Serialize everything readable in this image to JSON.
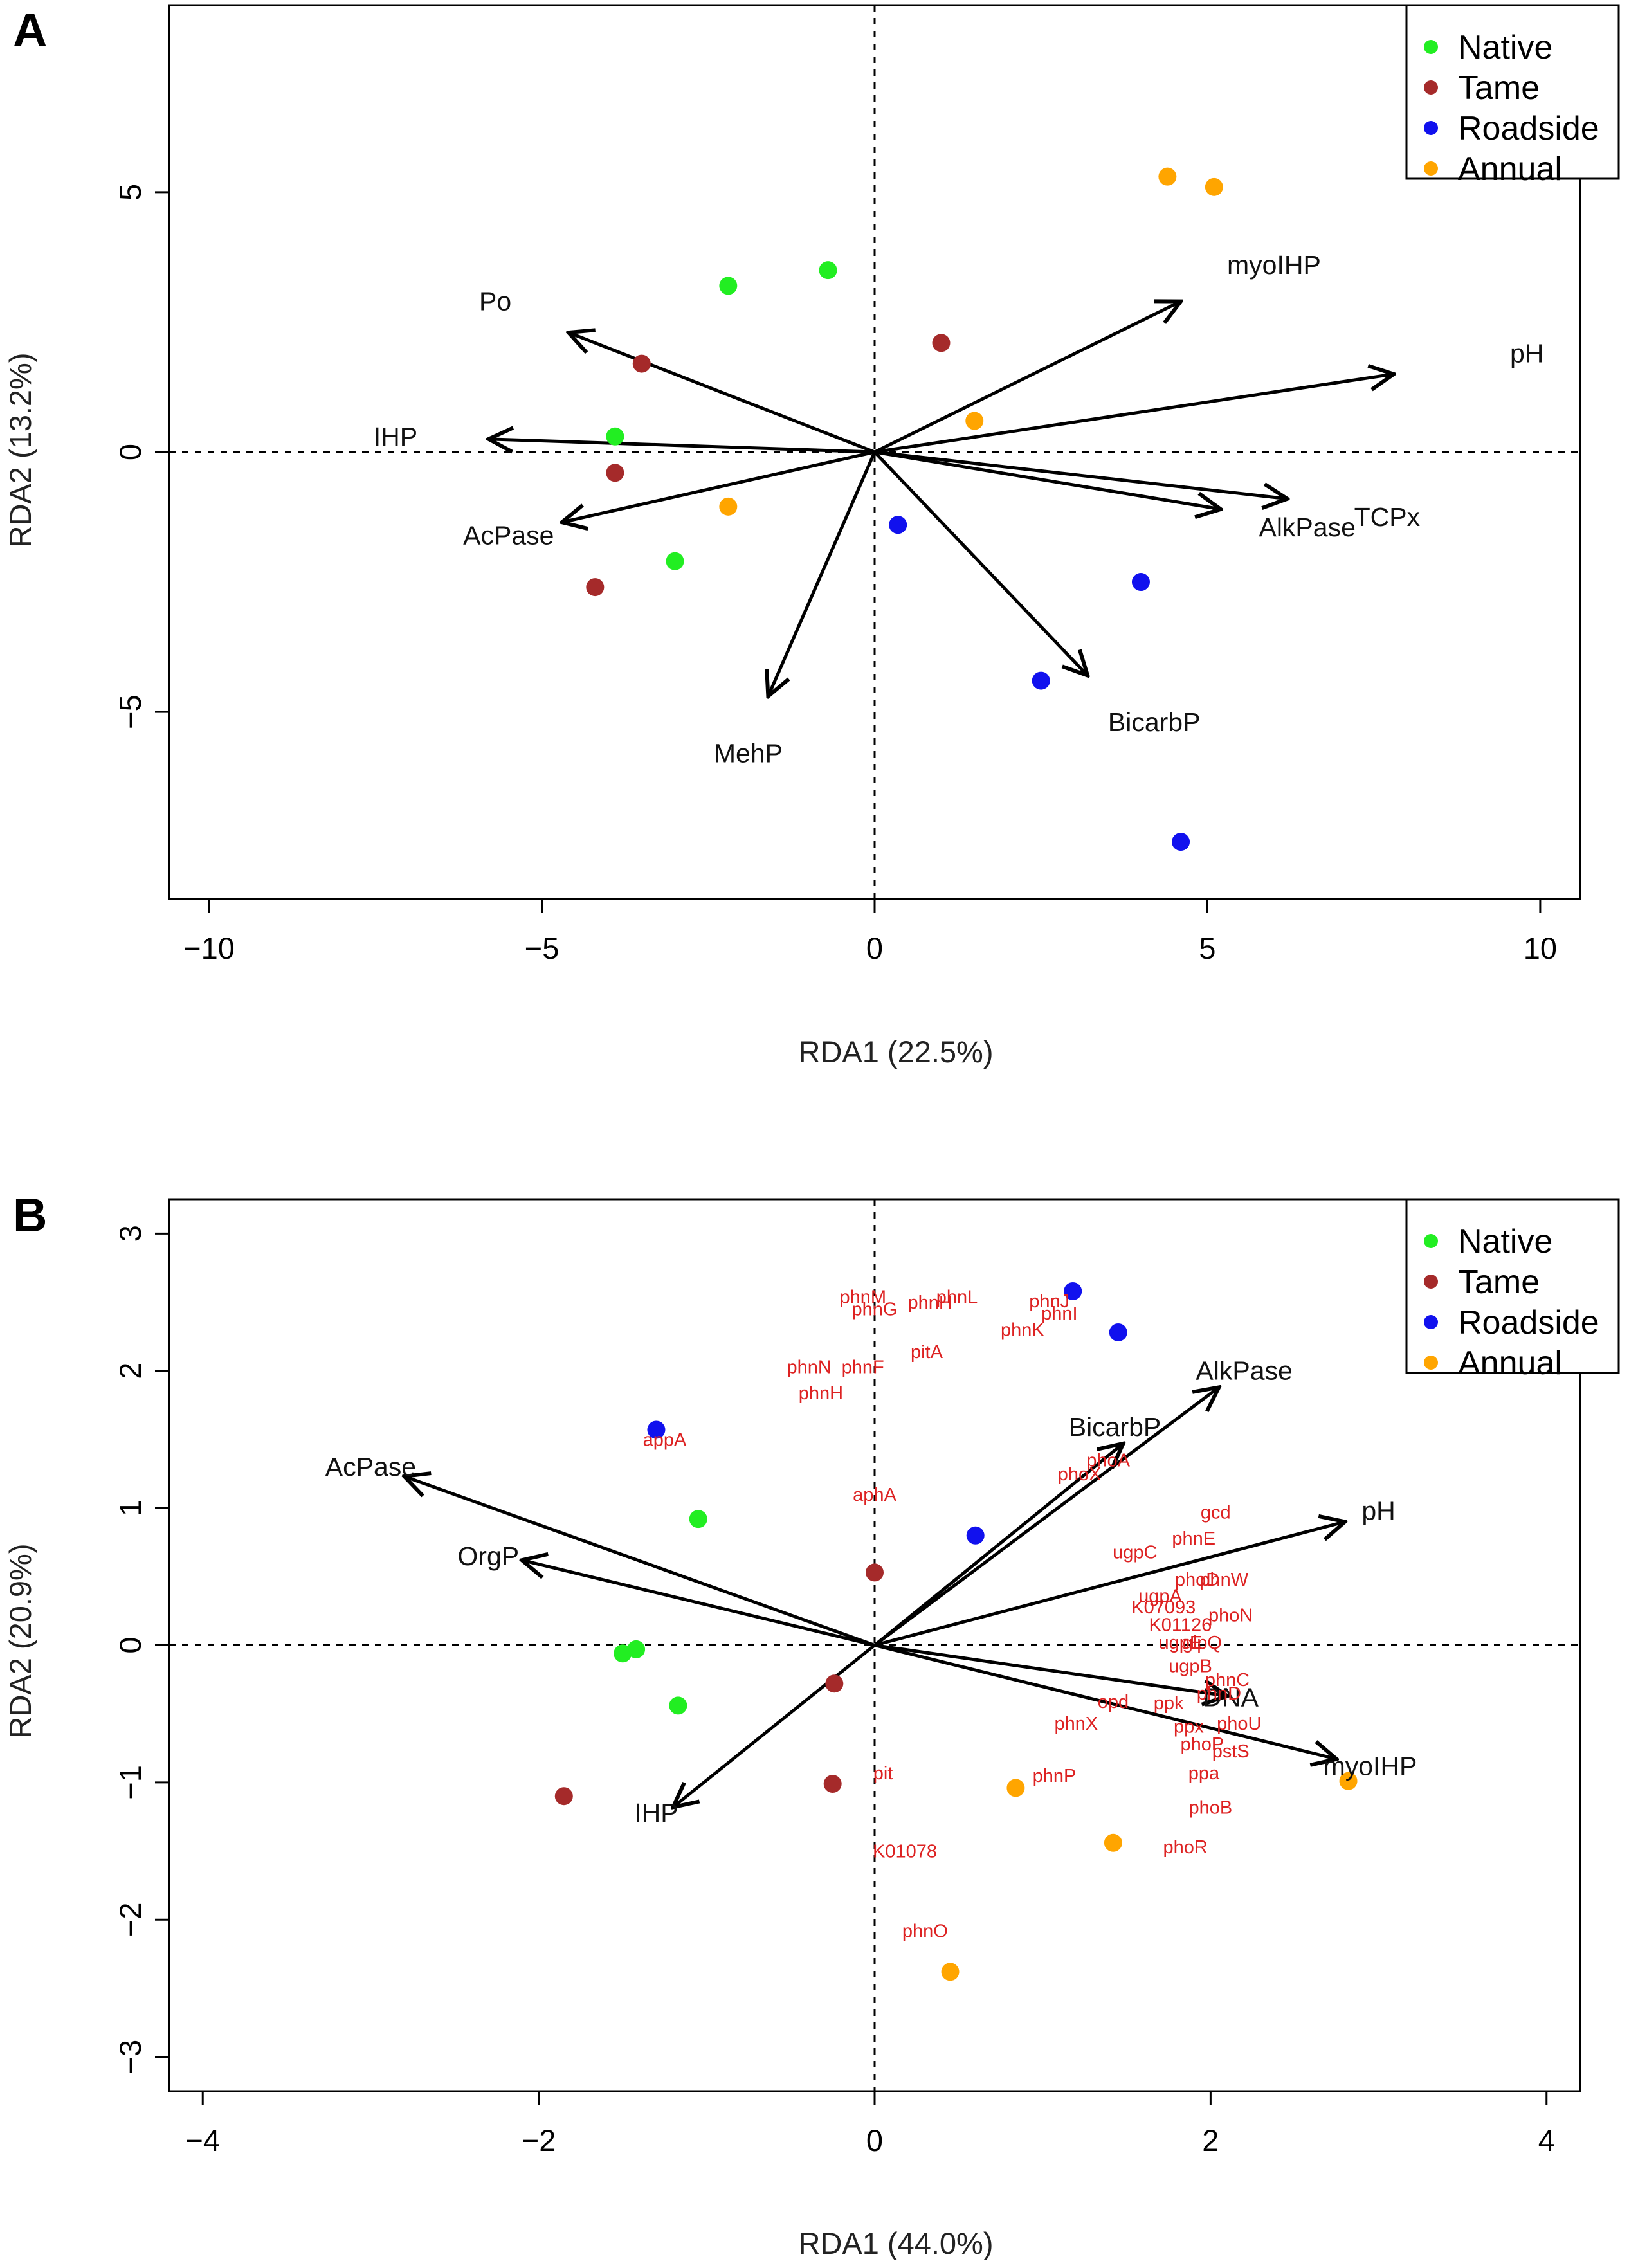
{
  "chart_data": [
    {
      "type": "scatter",
      "panel_label": "A",
      "xlabel": "RDA1 (22.5%)",
      "ylabel": "RDA2 (13.2%)",
      "xlim": [
        -10.6,
        10.6
      ],
      "ylim": [
        -8.6,
        8.6
      ],
      "xticks": [
        -10,
        -5,
        0,
        5,
        10
      ],
      "yticks": [
        -5,
        0,
        5
      ],
      "legend": {
        "position": "top-right",
        "entries": [
          {
            "label": "Native",
            "color": "#22ee22"
          },
          {
            "label": "Tame",
            "color": "#a52a2a"
          },
          {
            "label": "Roadside",
            "color": "#1111ee"
          },
          {
            "label": "Annual",
            "color": "#ffa500"
          }
        ]
      },
      "series": [
        {
          "name": "Native",
          "points": [
            [
              -2.2,
              3.2
            ],
            [
              -0.7,
              3.5
            ],
            [
              -3.9,
              0.3
            ],
            [
              -3.0,
              -2.1
            ]
          ]
        },
        {
          "name": "Tame",
          "points": [
            [
              1.0,
              2.1
            ],
            [
              -3.5,
              1.7
            ],
            [
              -3.9,
              -0.4
            ],
            [
              -4.2,
              -2.6
            ]
          ]
        },
        {
          "name": "Roadside",
          "points": [
            [
              0.35,
              -1.4
            ],
            [
              4.0,
              -2.5
            ],
            [
              2.5,
              -4.4
            ],
            [
              4.6,
              -7.5
            ]
          ]
        },
        {
          "name": "Annual",
          "points": [
            [
              4.4,
              5.3
            ],
            [
              5.1,
              5.1
            ],
            [
              1.5,
              0.6
            ],
            [
              -2.2,
              -1.05
            ]
          ]
        }
      ],
      "vectors": [
        {
          "name": "Po",
          "end": [
            -4.6,
            2.3
          ],
          "label_at": [
            -5.7,
            2.9
          ]
        },
        {
          "name": "myoIHP",
          "end": [
            4.6,
            2.9
          ],
          "label_at": [
            6.0,
            3.6
          ]
        },
        {
          "name": "pH",
          "end": [
            7.8,
            1.5
          ],
          "label_at": [
            9.8,
            1.9
          ]
        },
        {
          "name": "IHP",
          "end": [
            -5.8,
            0.25
          ],
          "label_at": [
            -7.2,
            0.3
          ]
        },
        {
          "name": "AcPase",
          "end": [
            -4.7,
            -1.35
          ],
          "label_at": [
            -5.5,
            -1.6
          ]
        },
        {
          "name": "AlkPase",
          "end": [
            5.2,
            -1.1
          ],
          "label_at": [
            6.5,
            -1.45
          ]
        },
        {
          "name": "TCPx",
          "end": [
            6.2,
            -0.9
          ],
          "label_at": [
            7.7,
            -1.25
          ]
        },
        {
          "name": "MehP",
          "end": [
            -1.6,
            -4.7
          ],
          "label_at": [
            -1.9,
            -5.8
          ]
        },
        {
          "name": "BicarbP",
          "end": [
            3.2,
            -4.3
          ],
          "label_at": [
            4.2,
            -5.2
          ]
        }
      ]
    },
    {
      "type": "scatter",
      "panel_label": "B",
      "xlabel": "RDA1 (44.0%)",
      "ylabel": "RDA2 (20.9%)",
      "xlim": [
        -4.2,
        4.2
      ],
      "ylim": [
        -3.25,
        3.25
      ],
      "xticks": [
        -4,
        -2,
        0,
        2,
        4
      ],
      "yticks": [
        -3,
        -2,
        -1,
        0,
        1,
        2,
        3
      ],
      "legend": {
        "position": "top-right",
        "entries": [
          {
            "label": "Native",
            "color": "#22ee22"
          },
          {
            "label": "Tame",
            "color": "#a52a2a"
          },
          {
            "label": "Roadside",
            "color": "#1111ee"
          },
          {
            "label": "Annual",
            "color": "#ffa500"
          }
        ]
      },
      "series": [
        {
          "name": "Native",
          "points": [
            [
              -1.05,
              0.92
            ],
            [
              -1.5,
              -0.06
            ],
            [
              -1.42,
              -0.03
            ],
            [
              -1.17,
              -0.44
            ]
          ]
        },
        {
          "name": "Tame",
          "points": [
            [
              0.0,
              0.53
            ],
            [
              -0.24,
              -0.28
            ],
            [
              -0.25,
              -1.01
            ],
            [
              -1.85,
              -1.1
            ]
          ]
        },
        {
          "name": "Roadside",
          "points": [
            [
              1.18,
              2.58
            ],
            [
              1.45,
              2.28
            ],
            [
              -1.3,
              1.57
            ],
            [
              0.6,
              0.8
            ]
          ]
        },
        {
          "name": "Annual",
          "points": [
            [
              2.82,
              -0.99
            ],
            [
              0.84,
              -1.04
            ],
            [
              1.42,
              -1.44
            ],
            [
              0.45,
              -2.38
            ]
          ]
        }
      ],
      "vectors": [
        {
          "name": "AcPase",
          "end": [
            -2.8,
            1.23
          ],
          "label_at": [
            -3.0,
            1.3
          ]
        },
        {
          "name": "OrgP",
          "end": [
            -2.1,
            0.62
          ],
          "label_at": [
            -2.3,
            0.65
          ]
        },
        {
          "name": "IHP",
          "end": [
            -1.2,
            -1.18
          ],
          "label_at": [
            -1.3,
            -1.22
          ]
        },
        {
          "name": "AlkPase",
          "end": [
            2.05,
            1.88
          ],
          "label_at": [
            2.2,
            2.0
          ]
        },
        {
          "name": "BicarbP",
          "end": [
            1.48,
            1.47
          ],
          "label_at": [
            1.43,
            1.59
          ]
        },
        {
          "name": "pH",
          "end": [
            2.8,
            0.9
          ],
          "label_at": [
            3.0,
            0.98
          ]
        },
        {
          "name": "DNA",
          "end": [
            2.1,
            -0.37
          ],
          "label_at": [
            2.12,
            -0.38
          ]
        },
        {
          "name": "myoIHP",
          "end": [
            2.75,
            -0.83
          ],
          "label_at": [
            2.95,
            -0.88
          ]
        }
      ],
      "gene_labels": [
        {
          "text": "phnM",
          "at": [
            -0.07,
            2.54
          ]
        },
        {
          "text": "phnL",
          "at": [
            0.49,
            2.54
          ]
        },
        {
          "text": "phnG",
          "at": [
            0.0,
            2.45
          ]
        },
        {
          "text": "phnH",
          "at": [
            0.33,
            2.5
          ]
        },
        {
          "text": "phnJ",
          "at": [
            1.04,
            2.51
          ]
        },
        {
          "text": "phnI",
          "at": [
            1.1,
            2.42
          ]
        },
        {
          "text": "phnK",
          "at": [
            0.88,
            2.3
          ]
        },
        {
          "text": "phnN",
          "at": [
            -0.39,
            2.03
          ]
        },
        {
          "text": "phnF",
          "at": [
            -0.07,
            2.03
          ]
        },
        {
          "text": "pitA",
          "at": [
            0.31,
            2.14
          ]
        },
        {
          "text": "phnH",
          "at": [
            -0.32,
            1.84
          ]
        },
        {
          "text": "appA",
          "at": [
            -1.25,
            1.5
          ]
        },
        {
          "text": "aphA",
          "at": [
            0.0,
            1.1
          ]
        },
        {
          "text": "phoA",
          "at": [
            1.39,
            1.35
          ]
        },
        {
          "text": "phoX",
          "at": [
            1.22,
            1.25
          ]
        },
        {
          "text": "gcd",
          "at": [
            2.03,
            0.97
          ]
        },
        {
          "text": "phnE",
          "at": [
            1.9,
            0.78
          ]
        },
        {
          "text": "ugpC",
          "at": [
            1.55,
            0.68
          ]
        },
        {
          "text": "phoD",
          "at": [
            1.92,
            0.48
          ]
        },
        {
          "text": "phnW",
          "at": [
            2.08,
            0.48
          ]
        },
        {
          "text": "ugpA",
          "at": [
            1.7,
            0.36
          ]
        },
        {
          "text": "K07093",
          "at": [
            1.72,
            0.28
          ]
        },
        {
          "text": "phoN",
          "at": [
            2.12,
            0.22
          ]
        },
        {
          "text": "K01126",
          "at": [
            1.82,
            0.15
          ]
        },
        {
          "text": "ugpE",
          "at": [
            1.82,
            0.02
          ]
        },
        {
          "text": "glpQ",
          "at": [
            1.95,
            0.02
          ]
        },
        {
          "text": "ugpB",
          "at": [
            1.88,
            -0.15
          ]
        },
        {
          "text": "phnC",
          "at": [
            2.1,
            -0.25
          ]
        },
        {
          "text": "phnD",
          "at": [
            2.05,
            -0.35
          ]
        },
        {
          "text": "opd",
          "at": [
            1.42,
            -0.41
          ]
        },
        {
          "text": "ppk",
          "at": [
            1.75,
            -0.42
          ]
        },
        {
          "text": "phnX",
          "at": [
            1.2,
            -0.57
          ]
        },
        {
          "text": "ppx",
          "at": [
            1.87,
            -0.59
          ]
        },
        {
          "text": "phoU",
          "at": [
            2.17,
            -0.57
          ]
        },
        {
          "text": "phoP",
          "at": [
            1.95,
            -0.72
          ]
        },
        {
          "text": "pstS",
          "at": [
            2.12,
            -0.77
          ]
        },
        {
          "text": "ppa",
          "at": [
            1.96,
            -0.93
          ]
        },
        {
          "text": "phnP",
          "at": [
            1.07,
            -0.95
          ]
        },
        {
          "text": "pit",
          "at": [
            0.05,
            -0.93
          ]
        },
        {
          "text": "phoB",
          "at": [
            2.0,
            -1.18
          ]
        },
        {
          "text": "phoR",
          "at": [
            1.85,
            -1.47
          ]
        },
        {
          "text": "K01078",
          "at": [
            0.18,
            -1.5
          ]
        },
        {
          "text": "phnO",
          "at": [
            0.3,
            -2.08
          ]
        }
      ]
    }
  ]
}
